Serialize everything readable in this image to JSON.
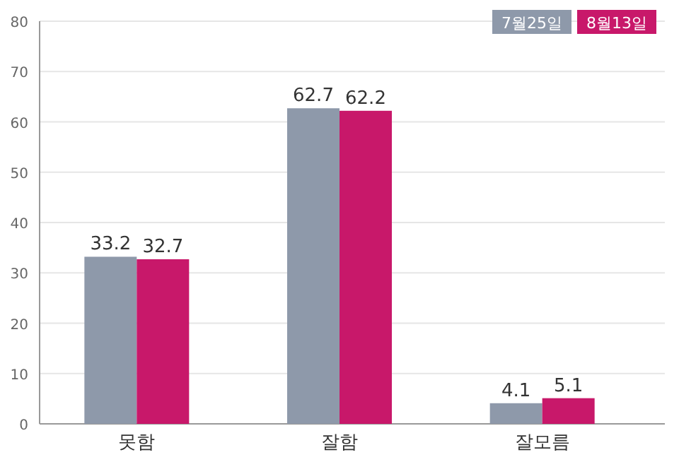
{
  "chart_data": {
    "type": "bar",
    "categories": [
      "못함",
      "잘함",
      "잘모름"
    ],
    "series": [
      {
        "name": "7월25일",
        "color": "#8e99aa",
        "values": [
          33.2,
          62.7,
          4.1
        ]
      },
      {
        "name": "8월13일",
        "color": "#c8186a",
        "values": [
          32.7,
          62.2,
          5.1
        ]
      }
    ],
    "ylim": [
      0,
      80
    ],
    "yticks": [
      0,
      10,
      20,
      30,
      40,
      50,
      60,
      70,
      80
    ],
    "grid": "y",
    "legend": "top right",
    "data_labels": true
  }
}
